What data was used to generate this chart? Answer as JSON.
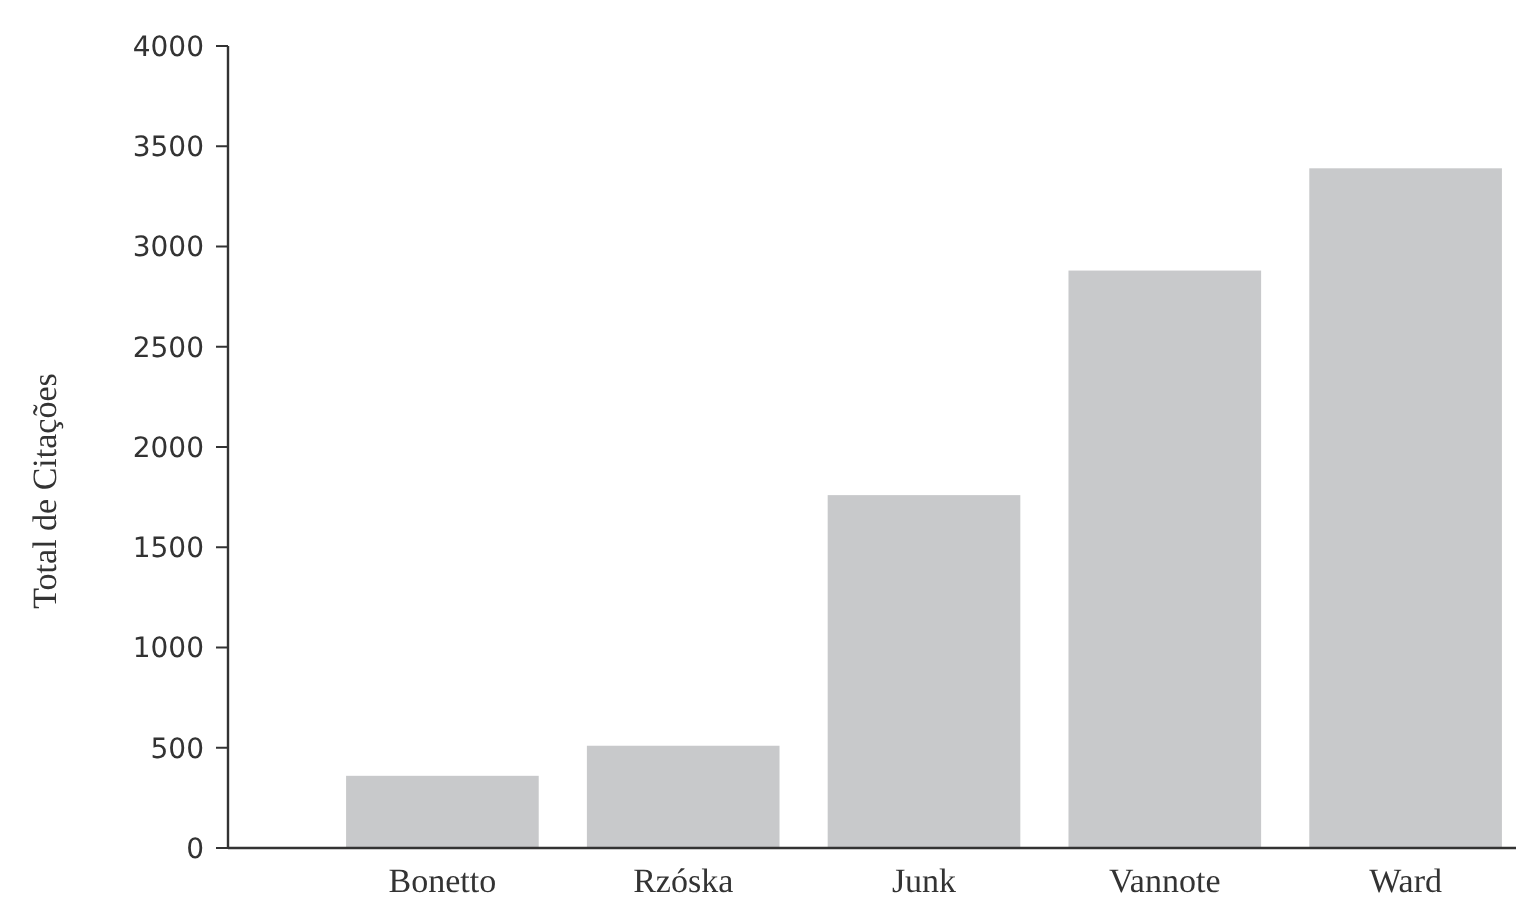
{
  "chart_data": {
    "type": "bar",
    "ylabel": "Total de Citações",
    "categories": [
      "Bonetto",
      "Rzóska",
      "Junk",
      "Vannote",
      "Ward"
    ],
    "values": [
      360,
      510,
      1760,
      2880,
      3390
    ],
    "color": "#c8c9cb",
    "ylim": [
      0,
      4000
    ],
    "yticks": [
      0,
      500,
      1000,
      1500,
      2000,
      2500,
      3000,
      3500,
      4000
    ],
    "grid": false
  }
}
